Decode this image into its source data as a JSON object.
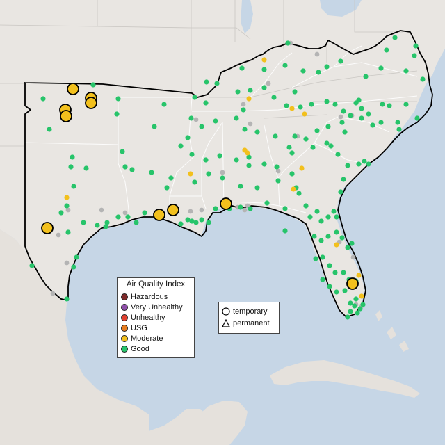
{
  "legend": {
    "title": "Air Quality Index",
    "categories": [
      {
        "label": "Hazardous",
        "color": "#7e2a2a"
      },
      {
        "label": "Very Unhealthy",
        "color": "#8e4fa8"
      },
      {
        "label": "Unhealthy",
        "color": "#e0402e"
      },
      {
        "label": "USG",
        "color": "#e87c1e"
      },
      {
        "label": "Moderate",
        "color": "#f2c01d"
      },
      {
        "label": "Good",
        "color": "#27c46a"
      }
    ],
    "no_data_color": "#b4b4b4"
  },
  "monitor_type_legend": {
    "items": [
      {
        "label": "temporary",
        "icon": "circle-icon"
      },
      {
        "label": "permanent",
        "icon": "triangle-icon"
      }
    ]
  },
  "colors": {
    "water": "#c6d6e6",
    "land": "#e9e6e2",
    "region_outline": "#000000"
  }
}
